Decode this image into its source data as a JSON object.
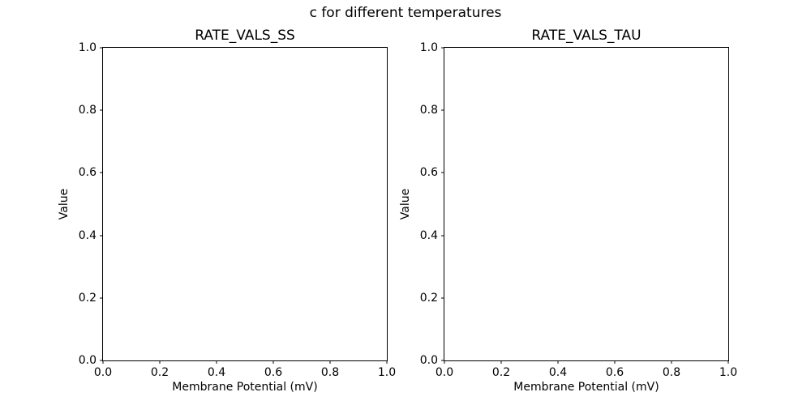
{
  "figure": {
    "suptitle": "c for different temperatures",
    "background_color": "#ffffff",
    "text_color": "#000000",
    "spine_color": "#000000"
  },
  "chart_data": [
    {
      "type": "line",
      "title": "RATE_VALS_SS",
      "xlabel": "Membrane Potential (mV)",
      "ylabel": "Value",
      "xlim": [
        0.0,
        1.0
      ],
      "ylim": [
        0.0,
        1.0
      ],
      "xticks": [
        "0.0",
        "0.2",
        "0.4",
        "0.6",
        "0.8",
        "1.0"
      ],
      "yticks": [
        "0.0",
        "0.2",
        "0.4",
        "0.6",
        "0.8",
        "1.0"
      ],
      "grid": false,
      "legend": false,
      "series": []
    },
    {
      "type": "line",
      "title": "RATE_VALS_TAU",
      "xlabel": "Membrane Potential (mV)",
      "ylabel": "Value",
      "xlim": [
        0.0,
        1.0
      ],
      "ylim": [
        0.0,
        1.0
      ],
      "xticks": [
        "0.0",
        "0.2",
        "0.4",
        "0.6",
        "0.8",
        "1.0"
      ],
      "yticks": [
        "0.0",
        "0.2",
        "0.4",
        "0.6",
        "0.8",
        "1.0"
      ],
      "grid": false,
      "legend": false,
      "series": []
    }
  ]
}
